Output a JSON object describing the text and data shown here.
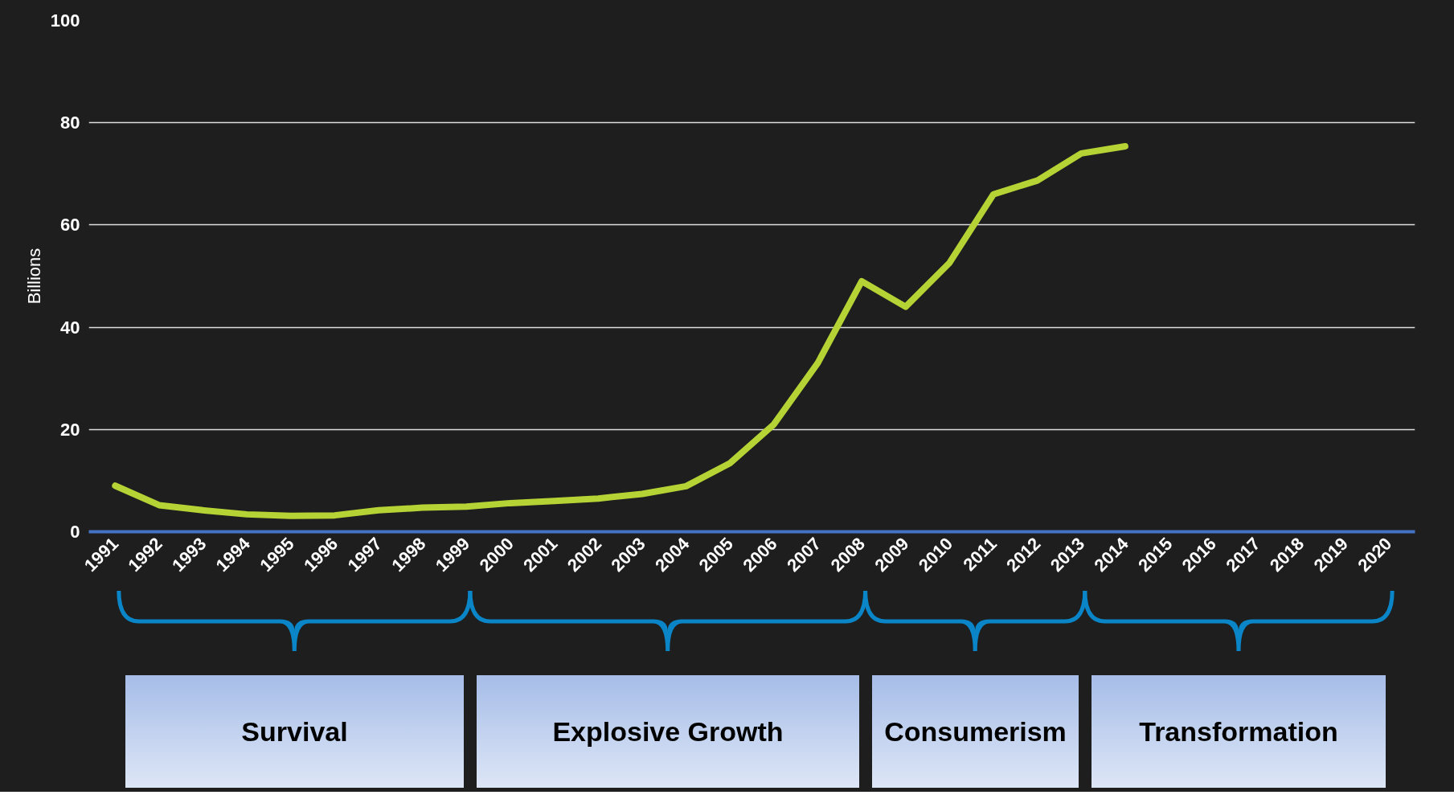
{
  "chart_data": {
    "type": "line",
    "ylabel": "Billions",
    "categories": [
      "1991",
      "1992",
      "1993",
      "1994",
      "1995",
      "1996",
      "1997",
      "1998",
      "1999",
      "2000",
      "2001",
      "2002",
      "2003",
      "2004",
      "2005",
      "2006",
      "2007",
      "2008",
      "2009",
      "2010",
      "2011",
      "2012",
      "2013",
      "2014",
      "2015",
      "2016",
      "2017",
      "2018",
      "2019",
      "2020"
    ],
    "series": [
      {
        "color": "#b5d334",
        "values": [
          9.0,
          5.2,
          4.2,
          3.4,
          3.1,
          3.2,
          4.2,
          4.7,
          4.9,
          5.6,
          6.0,
          6.5,
          7.4,
          8.9,
          13.4,
          21,
          33,
          49,
          44,
          52.6,
          66,
          68.7,
          74,
          75.4,
          null,
          null,
          null,
          null,
          null,
          null
        ]
      }
    ],
    "ylim": [
      0,
      100
    ],
    "yticks": [
      0,
      20,
      40,
      60,
      80,
      100
    ],
    "grid": "y",
    "marker": "none",
    "line_style": "solid",
    "annotations": [
      "Survival",
      "Explosive Growth",
      "Consumerism",
      "Transformation"
    ]
  }
}
